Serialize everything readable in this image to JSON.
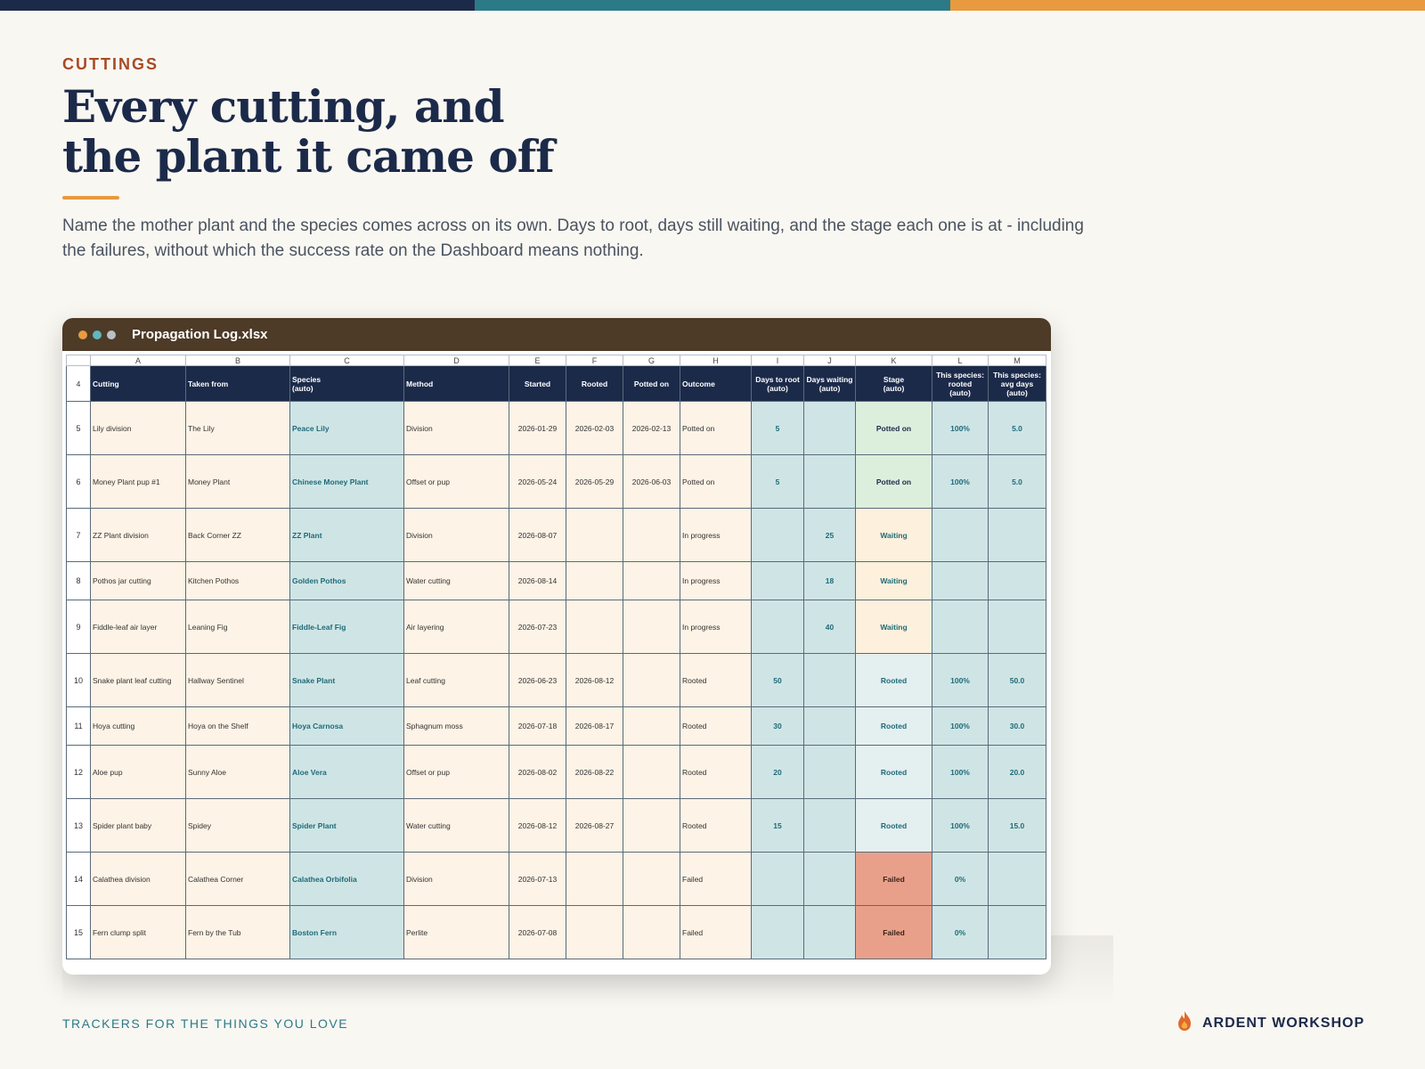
{
  "colors": {
    "navy": "#1c2a4a",
    "teal": "#2b7a88",
    "orange": "#e89a3e",
    "brown": "#4d3a27",
    "rust": "#a84a25"
  },
  "header": {
    "eyebrow": "CUTTINGS",
    "title_line1": "Every cutting, and",
    "title_line2": "the plant it came off",
    "subtitle": "Name the mother plant and the species comes across on its own. Days to root, days still waiting, and the stage each one is at - including the failures, without which the success rate on the Dashboard means nothing."
  },
  "window": {
    "title": "Propagation Log.xlsx",
    "dots": [
      "#e89a3e",
      "#5fb7c0",
      "#b9c0c8"
    ]
  },
  "sheet": {
    "column_letters": [
      "A",
      "B",
      "C",
      "D",
      "E",
      "F",
      "G",
      "H",
      "I",
      "J",
      "K",
      "L",
      "M"
    ],
    "header_row_number": "4",
    "headers": [
      "Cutting",
      "Taken from",
      "Species\n(auto)",
      "Method",
      "Started",
      "Rooted",
      "Potted on",
      "Outcome",
      "Days to root\n(auto)",
      "Days waiting\n(auto)",
      "Stage\n(auto)",
      "This species:\nrooted\n(auto)",
      "This species:\navg days\n(auto)"
    ],
    "rows": [
      {
        "n": "5",
        "cutting": "Lily division",
        "from": "The Lily",
        "species": "Peace Lily",
        "method": "Division",
        "started": "2026-01-29",
        "rooted": "2026-02-03",
        "potted": "2026-02-13",
        "outcome": "Potted on",
        "days_root": "5",
        "days_wait": "",
        "stage": "Potted on",
        "rate": "100%",
        "avg": "5.0"
      },
      {
        "n": "6",
        "cutting": "Money Plant pup #1",
        "from": "Money Plant",
        "species": "Chinese Money Plant",
        "method": "Offset or pup",
        "started": "2026-05-24",
        "rooted": "2026-05-29",
        "potted": "2026-06-03",
        "outcome": "Potted on",
        "days_root": "5",
        "days_wait": "",
        "stage": "Potted on",
        "rate": "100%",
        "avg": "5.0"
      },
      {
        "n": "7",
        "cutting": "ZZ Plant division",
        "from": "Back Corner ZZ",
        "species": "ZZ Plant",
        "method": "Division",
        "started": "2026-08-07",
        "rooted": "",
        "potted": "",
        "outcome": "In progress",
        "days_root": "",
        "days_wait": "25",
        "stage": "Waiting",
        "rate": "",
        "avg": ""
      },
      {
        "n": "8",
        "cutting": "Pothos jar cutting",
        "from": "Kitchen Pothos",
        "species": "Golden Pothos",
        "method": "Water cutting",
        "started": "2026-08-14",
        "rooted": "",
        "potted": "",
        "outcome": "In progress",
        "days_root": "",
        "days_wait": "18",
        "stage": "Waiting",
        "rate": "",
        "avg": ""
      },
      {
        "n": "9",
        "cutting": "Fiddle-leaf air layer",
        "from": "Leaning Fig",
        "species": "Fiddle-Leaf Fig",
        "method": "Air layering",
        "started": "2026-07-23",
        "rooted": "",
        "potted": "",
        "outcome": "In progress",
        "days_root": "",
        "days_wait": "40",
        "stage": "Waiting",
        "rate": "",
        "avg": ""
      },
      {
        "n": "10",
        "cutting": "Snake plant leaf cutting",
        "from": "Hallway Sentinel",
        "species": "Snake Plant",
        "method": "Leaf cutting",
        "started": "2026-06-23",
        "rooted": "2026-08-12",
        "potted": "",
        "outcome": "Rooted",
        "days_root": "50",
        "days_wait": "",
        "stage": "Rooted",
        "rate": "100%",
        "avg": "50.0"
      },
      {
        "n": "11",
        "cutting": "Hoya cutting",
        "from": "Hoya on the Shelf",
        "species": "Hoya Carnosa",
        "method": "Sphagnum moss",
        "started": "2026-07-18",
        "rooted": "2026-08-17",
        "potted": "",
        "outcome": "Rooted",
        "days_root": "30",
        "days_wait": "",
        "stage": "Rooted",
        "rate": "100%",
        "avg": "30.0"
      },
      {
        "n": "12",
        "cutting": "Aloe pup",
        "from": "Sunny Aloe",
        "species": "Aloe Vera",
        "method": "Offset or pup",
        "started": "2026-08-02",
        "rooted": "2026-08-22",
        "potted": "",
        "outcome": "Rooted",
        "days_root": "20",
        "days_wait": "",
        "stage": "Rooted",
        "rate": "100%",
        "avg": "20.0"
      },
      {
        "n": "13",
        "cutting": "Spider plant baby",
        "from": "Spidey",
        "species": "Spider Plant",
        "method": "Water cutting",
        "started": "2026-08-12",
        "rooted": "2026-08-27",
        "potted": "",
        "outcome": "Rooted",
        "days_root": "15",
        "days_wait": "",
        "stage": "Rooted",
        "rate": "100%",
        "avg": "15.0"
      },
      {
        "n": "14",
        "cutting": "Calathea division",
        "from": "Calathea Corner",
        "species": "Calathea Orbifolia",
        "method": "Division",
        "started": "2026-07-13",
        "rooted": "",
        "potted": "",
        "outcome": "Failed",
        "days_root": "",
        "days_wait": "",
        "stage": "Failed",
        "rate": "0%",
        "avg": ""
      },
      {
        "n": "15",
        "cutting": "Fern clump split",
        "from": "Fern by the Tub",
        "species": "Boston Fern",
        "method": "Perlite",
        "started": "2026-07-08",
        "rooted": "",
        "potted": "",
        "outcome": "Failed",
        "days_root": "",
        "days_wait": "",
        "stage": "Failed",
        "rate": "0%",
        "avg": ""
      }
    ]
  },
  "footer": {
    "tagline": "TRACKERS FOR THE THINGS YOU LOVE",
    "brand": "ARDENT WORKSHOP",
    "brand_icon": "flame-icon"
  }
}
